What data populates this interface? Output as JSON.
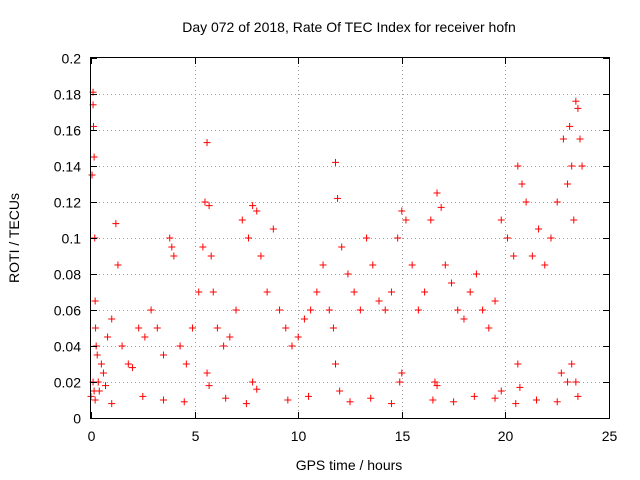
{
  "chart_data": {
    "type": "scatter",
    "title": "Day 072 of 2018, Rate Of TEC Index for receiver hofn",
    "xlabel": "GPS time / hours",
    "ylabel": "ROTI / TECUs",
    "xlim": [
      0,
      25
    ],
    "ylim": [
      0,
      0.2
    ],
    "x_ticks": [
      0,
      5,
      10,
      15,
      20,
      25
    ],
    "x_tick_labels": [
      "0",
      "5",
      "10",
      "15",
      "20",
      "25"
    ],
    "y_ticks": [
      0,
      0.02,
      0.04,
      0.06,
      0.08,
      0.1,
      0.12,
      0.14,
      0.16,
      0.18,
      0.2
    ],
    "y_tick_labels": [
      "0",
      "0.02",
      "0.04",
      "0.06",
      "0.08",
      "0.1",
      "0.12",
      "0.14",
      "0.16",
      "0.18",
      "0.2"
    ],
    "grid": true,
    "marker": "+",
    "marker_color": "#ff0000",
    "series": [
      {
        "name": "ROTI",
        "x": [
          0.0,
          0.05,
          0.1,
          0.1,
          0.12,
          0.15,
          0.18,
          0.2,
          0.22,
          0.25,
          0.3,
          0.35,
          0.4,
          0.5,
          0.6,
          0.7,
          0.8,
          1.0,
          1.2,
          1.3,
          1.5,
          1.8,
          2.0,
          2.3,
          2.6,
          2.9,
          3.2,
          3.5,
          3.8,
          3.9,
          4.0,
          4.3,
          4.6,
          4.9,
          5.2,
          5.4,
          5.5,
          5.6,
          5.7,
          5.8,
          5.9,
          6.1,
          6.4,
          6.7,
          7.0,
          7.3,
          7.6,
          7.8,
          8.0,
          8.2,
          8.5,
          8.8,
          9.1,
          9.4,
          9.7,
          10.0,
          10.3,
          10.6,
          10.9,
          11.2,
          11.5,
          11.7,
          11.8,
          11.9,
          12.1,
          12.4,
          12.7,
          13.0,
          13.3,
          13.6,
          13.9,
          14.2,
          14.5,
          14.8,
          15.0,
          15.2,
          15.5,
          15.8,
          16.1,
          16.4,
          16.7,
          16.9,
          17.1,
          17.4,
          17.7,
          18.0,
          18.3,
          18.6,
          18.9,
          19.2,
          19.5,
          19.8,
          20.1,
          20.4,
          20.6,
          20.8,
          21.0,
          21.3,
          21.6,
          21.9,
          22.2,
          22.5,
          22.8,
          23.0,
          23.1,
          23.2,
          23.3,
          23.4,
          23.5,
          23.6,
          23.7,
          0.2,
          1.0,
          2.5,
          3.5,
          4.5,
          6.5,
          7.5,
          9.5,
          10.5,
          12.5,
          13.5,
          14.5,
          16.5,
          17.5,
          18.5,
          19.5,
          20.5,
          21.5,
          22.5,
          23.5,
          0.1,
          5.6,
          7.8,
          11.8,
          15.0,
          16.6,
          20.6,
          22.7,
          23.2,
          0.15,
          5.7,
          8.0,
          12.0,
          14.9,
          16.7,
          19.8,
          20.7,
          23.0,
          23.4
        ],
        "y": [
          0.012,
          0.135,
          0.181,
          0.174,
          0.162,
          0.145,
          0.1,
          0.065,
          0.05,
          0.04,
          0.035,
          0.02,
          0.015,
          0.03,
          0.025,
          0.018,
          0.045,
          0.055,
          0.108,
          0.085,
          0.04,
          0.03,
          0.028,
          0.05,
          0.045,
          0.06,
          0.05,
          0.035,
          0.1,
          0.095,
          0.09,
          0.04,
          0.03,
          0.05,
          0.07,
          0.095,
          0.12,
          0.153,
          0.118,
          0.09,
          0.07,
          0.05,
          0.04,
          0.045,
          0.06,
          0.11,
          0.1,
          0.118,
          0.115,
          0.09,
          0.07,
          0.105,
          0.06,
          0.05,
          0.04,
          0.045,
          0.055,
          0.06,
          0.07,
          0.085,
          0.06,
          0.05,
          0.142,
          0.122,
          0.095,
          0.08,
          0.07,
          0.06,
          0.1,
          0.085,
          0.065,
          0.06,
          0.07,
          0.1,
          0.115,
          0.11,
          0.085,
          0.06,
          0.07,
          0.11,
          0.125,
          0.117,
          0.085,
          0.075,
          0.06,
          0.055,
          0.07,
          0.08,
          0.06,
          0.05,
          0.065,
          0.11,
          0.1,
          0.09,
          0.14,
          0.13,
          0.12,
          0.09,
          0.105,
          0.085,
          0.1,
          0.12,
          0.155,
          0.13,
          0.162,
          0.14,
          0.11,
          0.176,
          0.172,
          0.155,
          0.14,
          0.01,
          0.008,
          0.012,
          0.01,
          0.009,
          0.011,
          0.008,
          0.01,
          0.012,
          0.009,
          0.011,
          0.008,
          0.01,
          0.009,
          0.012,
          0.011,
          0.008,
          0.01,
          0.009,
          0.012,
          0.02,
          0.025,
          0.02,
          0.03,
          0.025,
          0.02,
          0.03,
          0.025,
          0.03,
          0.015,
          0.018,
          0.016,
          0.015,
          0.02,
          0.018,
          0.015,
          0.017,
          0.02,
          0.02
        ]
      }
    ]
  }
}
